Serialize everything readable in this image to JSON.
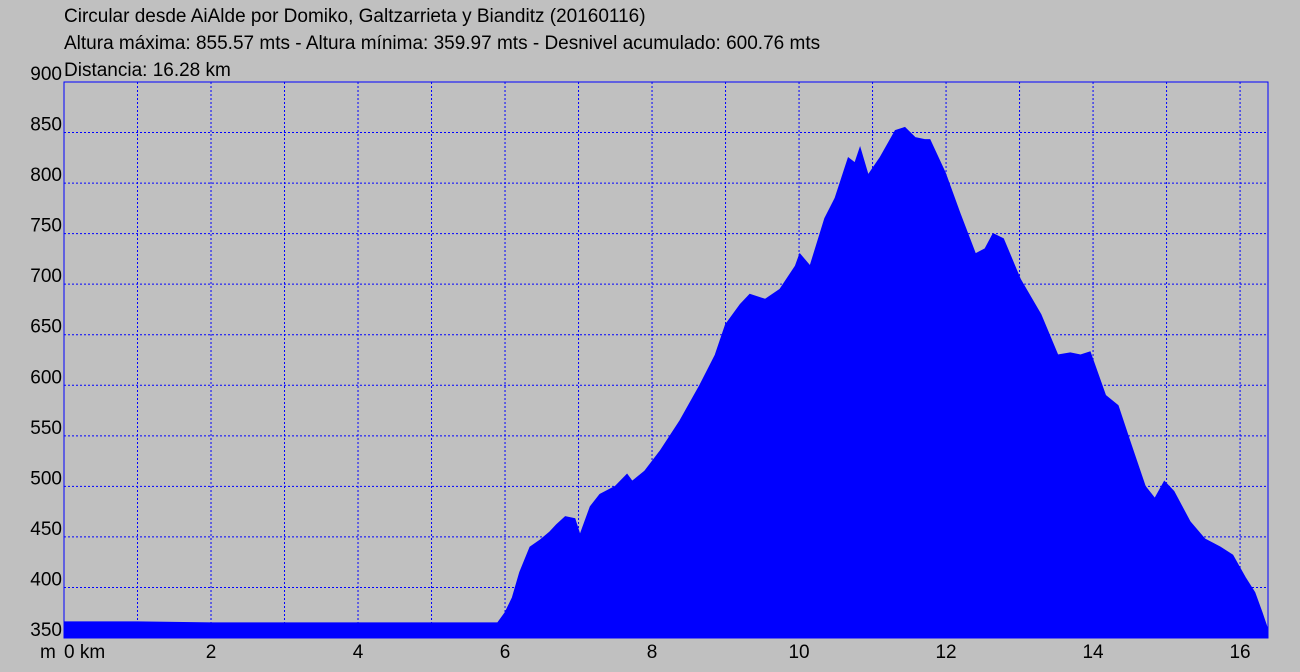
{
  "chart_data": {
    "type": "area",
    "title": "Circular desde AiAlde por Domiko, Galtzarrieta y Bianditz (20160116)",
    "subtitle": "Altura máxima: 855.57 mts - Altura mínima: 359.97 mts - Desnivel acumulado: 600.76 mts",
    "distance_label": "Distancia: 16.28 km",
    "ylabel": "m",
    "color": "#0000ff",
    "grid": true,
    "xlim": [
      0,
      16.38
    ],
    "ylim": [
      350,
      900
    ],
    "xticks": [
      {
        "value": 0,
        "label": "0 km"
      },
      2,
      4,
      6,
      8,
      10,
      12,
      14,
      16
    ],
    "xminor": [
      1,
      3,
      5,
      7,
      9,
      11,
      13,
      15
    ],
    "yticks": [
      350,
      400,
      450,
      500,
      550,
      600,
      650,
      700,
      750,
      800,
      850,
      900
    ],
    "x": [
      0,
      1,
      2,
      3,
      4,
      5,
      5.9,
      5.93,
      6.0,
      6.1,
      6.2,
      6.34,
      6.48,
      6.61,
      6.7,
      6.82,
      6.95,
      7.02,
      7.16,
      7.29,
      7.5,
      7.66,
      7.73,
      7.9,
      8.11,
      8.38,
      8.65,
      8.86,
      9.0,
      9.2,
      9.33,
      9.54,
      9.74,
      9.95,
      10.01,
      10.15,
      10.35,
      10.49,
      10.67,
      10.76,
      10.83,
      10.94,
      11.1,
      11.31,
      11.44,
      11.58,
      11.71,
      11.78,
      11.99,
      12.19,
      12.4,
      12.53,
      12.64,
      12.78,
      13.01,
      13.29,
      13.52,
      13.69,
      13.83,
      13.96,
      14.17,
      14.34,
      14.5,
      14.71,
      14.84,
      14.97,
      15.1,
      15.32,
      15.52,
      15.73,
      15.9,
      16.07,
      16.2,
      16.3,
      16.37
    ],
    "values": [
      366,
      366,
      365,
      365,
      365,
      365,
      365,
      368,
      375,
      390,
      415,
      440,
      447,
      455,
      462,
      470,
      468,
      452,
      480,
      492,
      500,
      512,
      505,
      515,
      535,
      565,
      600,
      630,
      660,
      680,
      690,
      685,
      695,
      718,
      730,
      718,
      765,
      785,
      825,
      820,
      835,
      808,
      825,
      852,
      855,
      845,
      843,
      843,
      810,
      770,
      730,
      735,
      750,
      745,
      705,
      670,
      630,
      632,
      630,
      633,
      590,
      580,
      545,
      500,
      488,
      505,
      495,
      465,
      448,
      440,
      432,
      410,
      395,
      375,
      360
    ]
  }
}
